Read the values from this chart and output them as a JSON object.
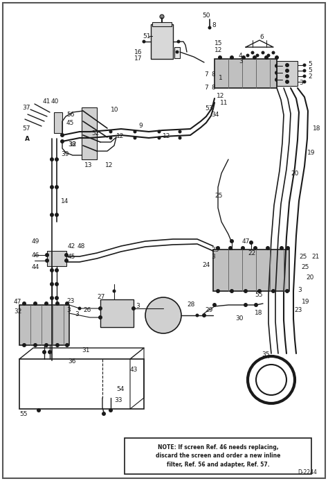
{
  "bg_color": "#ffffff",
  "line_color": "#1a1a1a",
  "note_text": "NOTE: If screen Ref. 46 needs replacing,\ndiscard the screen and order a new inline\nfilter, Ref. 56 and adapter, Ref. 57.",
  "diagram_id": "D-2244",
  "figsize": [
    4.74,
    6.94
  ],
  "dpi": 100,
  "border_color": "#888888"
}
